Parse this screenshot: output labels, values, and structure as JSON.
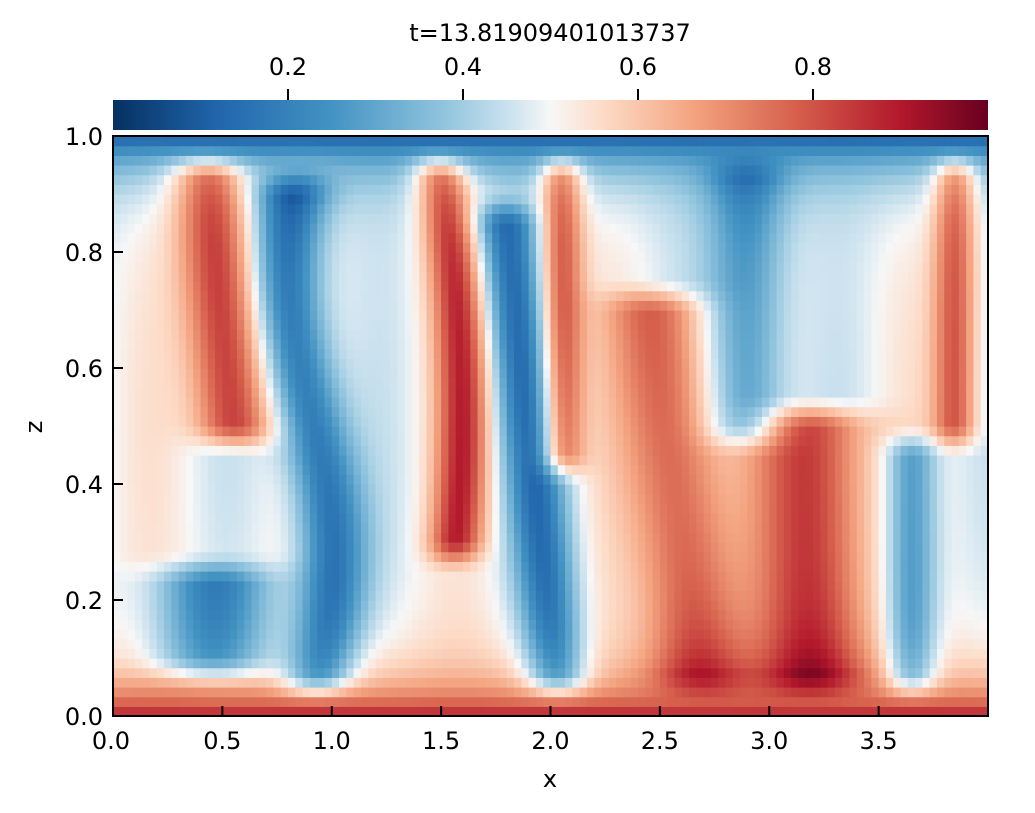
{
  "chart_data": {
    "type": "heatmap",
    "title": "t=13.81909401013737",
    "xlabel": "x",
    "ylabel": "z",
    "xlim": [
      0.0,
      4.0
    ],
    "ylim": [
      0.0,
      1.0
    ],
    "x_ticks": [
      "0.0",
      "0.5",
      "1.0",
      "1.5",
      "2.0",
      "2.5",
      "3.0",
      "3.5"
    ],
    "y_ticks": [
      "0.0",
      "0.2",
      "0.4",
      "0.6",
      "0.8",
      "1.0"
    ],
    "colorbar": {
      "ticks": [
        "0.2",
        "0.4",
        "0.6",
        "0.8"
      ],
      "range": [
        0.0,
        1.0
      ],
      "location": "top",
      "colormap": "RdBu_r"
    },
    "grid": false,
    "description_field": "temperature-like scalar field with rising red plumes and descending blue plumes"
  },
  "colors": {
    "low": "#053061",
    "mid": "#f7f7f7",
    "high": "#67001f"
  }
}
